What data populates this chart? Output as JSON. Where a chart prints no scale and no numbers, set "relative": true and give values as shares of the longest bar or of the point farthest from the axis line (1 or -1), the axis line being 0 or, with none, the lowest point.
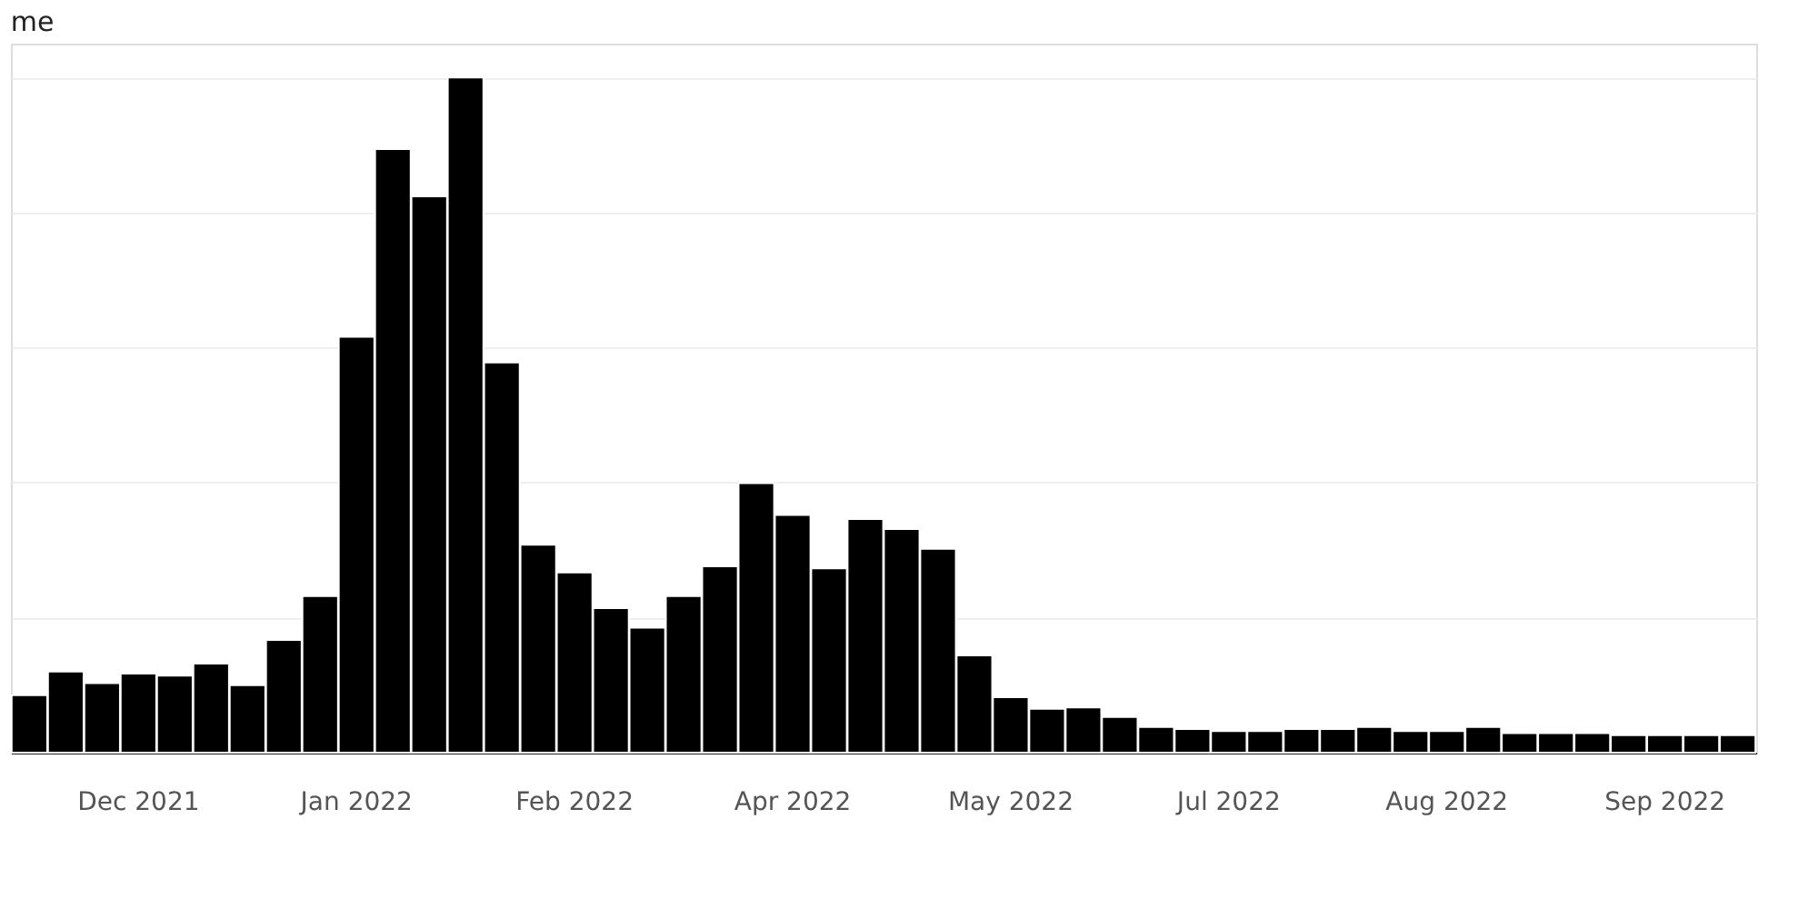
{
  "chart_data": {
    "type": "bar",
    "title": "me",
    "relative": true,
    "grid": "y",
    "categories": [
      null,
      null,
      null,
      "Dec 2021",
      null,
      null,
      null,
      null,
      null,
      "Jan 2022",
      null,
      null,
      null,
      null,
      null,
      "Feb 2022",
      null,
      null,
      null,
      null,
      null,
      "Apr 2022",
      null,
      null,
      null,
      null,
      null,
      "May 2022",
      null,
      null,
      null,
      null,
      null,
      "Jul 2022",
      null,
      null,
      null,
      null,
      null,
      "Aug 2022",
      null,
      null,
      null,
      null,
      null,
      "Sep 2022",
      null,
      null
    ],
    "values": [
      0.085,
      0.12,
      0.103,
      0.117,
      0.114,
      0.132,
      0.1,
      0.167,
      0.232,
      0.616,
      0.894,
      0.824,
      1,
      0.578,
      0.308,
      0.267,
      0.214,
      0.185,
      0.232,
      0.276,
      0.399,
      0.352,
      0.273,
      0.346,
      0.331,
      0.302,
      0.144,
      0.082,
      0.065,
      0.067,
      0.053,
      0.038,
      0.035,
      0.032,
      0.032,
      0.035,
      0.035,
      0.038,
      0.032,
      0.032,
      0.038,
      0.029,
      0.029,
      0.029,
      0.026,
      0.026,
      0.026,
      0.026
    ],
    "color": "#000000"
  }
}
